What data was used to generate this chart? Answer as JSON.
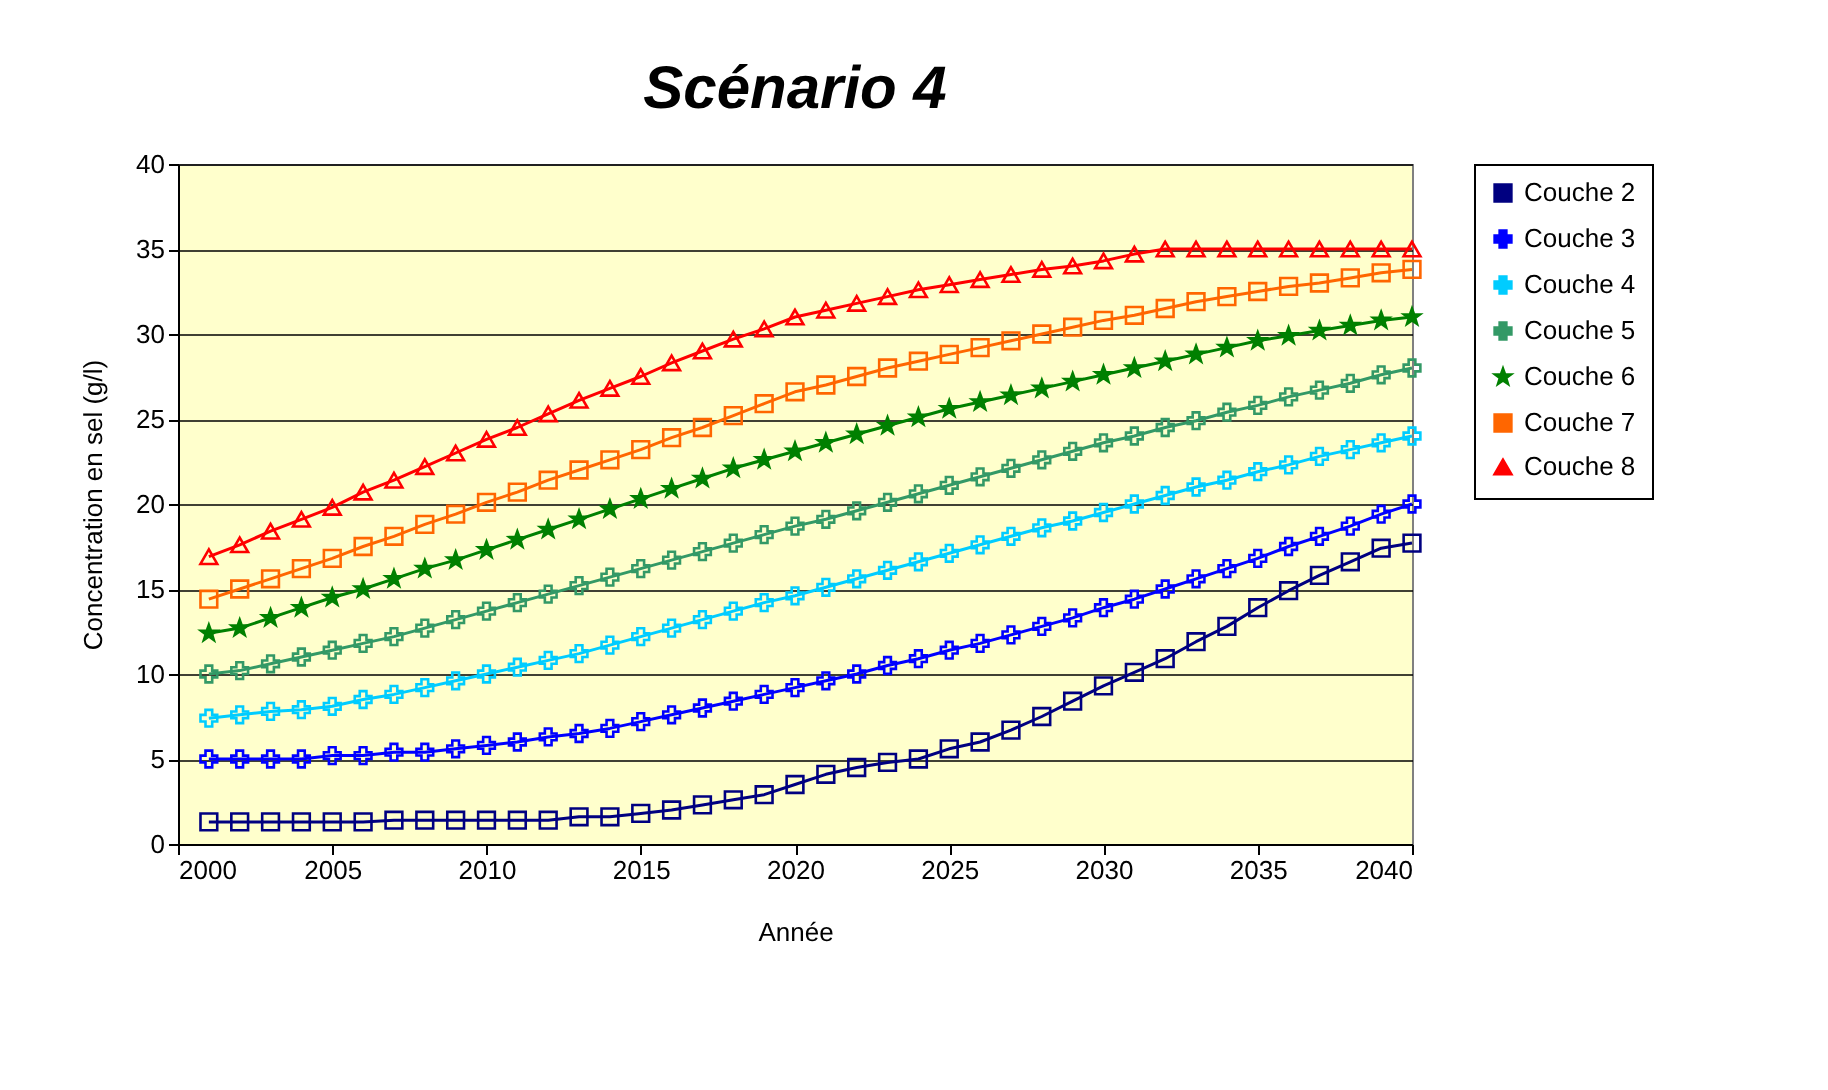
{
  "chart_data": {
    "type": "line",
    "title": "Scénario 4",
    "xlabel": "Année",
    "ylabel": "Concentration en sel (g/l)",
    "x": [
      2001,
      2002,
      2003,
      2004,
      2005,
      2006,
      2007,
      2008,
      2009,
      2010,
      2011,
      2012,
      2013,
      2014,
      2015,
      2016,
      2017,
      2018,
      2019,
      2020,
      2021,
      2022,
      2023,
      2024,
      2025,
      2026,
      2027,
      2028,
      2029,
      2030,
      2031,
      2032,
      2033,
      2034,
      2035,
      2036,
      2037,
      2038,
      2039,
      2040
    ],
    "xlim": [
      2000,
      2040
    ],
    "xticks": [
      2000,
      2005,
      2010,
      2015,
      2020,
      2025,
      2030,
      2035,
      2040
    ],
    "ylim": [
      0,
      40
    ],
    "yticks": [
      0,
      5,
      10,
      15,
      20,
      25,
      30,
      35,
      40
    ],
    "grid": "y",
    "legend": "right",
    "series": [
      {
        "name": "Couche 2",
        "color": "#000080",
        "marker": "square",
        "values": [
          1.3,
          1.3,
          1.3,
          1.3,
          1.3,
          1.3,
          1.4,
          1.4,
          1.4,
          1.4,
          1.4,
          1.4,
          1.6,
          1.6,
          1.8,
          2.0,
          2.3,
          2.6,
          2.9,
          3.5,
          4.1,
          4.5,
          4.8,
          5.0,
          5.6,
          6.0,
          6.7,
          7.5,
          8.4,
          9.3,
          10.1,
          10.9,
          11.9,
          12.8,
          13.9,
          14.9,
          15.8,
          16.6,
          17.4,
          17.7
        ]
      },
      {
        "name": "Couche 3",
        "color": "#0000ff",
        "marker": "cross",
        "values": [
          5.0,
          5.0,
          5.0,
          5.0,
          5.2,
          5.2,
          5.4,
          5.4,
          5.6,
          5.8,
          6.0,
          6.3,
          6.5,
          6.8,
          7.2,
          7.6,
          8.0,
          8.4,
          8.8,
          9.2,
          9.6,
          10.0,
          10.5,
          10.9,
          11.4,
          11.8,
          12.3,
          12.8,
          13.3,
          13.9,
          14.4,
          15.0,
          15.6,
          16.2,
          16.8,
          17.5,
          18.1,
          18.7,
          19.4,
          20.0
        ]
      },
      {
        "name": "Couche 4",
        "color": "#00ccff",
        "marker": "cross",
        "values": [
          7.4,
          7.6,
          7.8,
          7.9,
          8.1,
          8.5,
          8.8,
          9.2,
          9.6,
          10.0,
          10.4,
          10.8,
          11.2,
          11.7,
          12.2,
          12.7,
          13.2,
          13.7,
          14.2,
          14.6,
          15.1,
          15.6,
          16.1,
          16.6,
          17.1,
          17.6,
          18.1,
          18.6,
          19.0,
          19.5,
          20.0,
          20.5,
          21.0,
          21.4,
          21.9,
          22.3,
          22.8,
          23.2,
          23.6,
          24.0
        ]
      },
      {
        "name": "Couche 5",
        "color": "#339966",
        "marker": "cross",
        "values": [
          10.0,
          10.2,
          10.6,
          11.0,
          11.4,
          11.8,
          12.2,
          12.7,
          13.2,
          13.7,
          14.2,
          14.7,
          15.2,
          15.7,
          16.2,
          16.7,
          17.2,
          17.7,
          18.2,
          18.7,
          19.1,
          19.6,
          20.1,
          20.6,
          21.1,
          21.6,
          22.1,
          22.6,
          23.1,
          23.6,
          24.0,
          24.5,
          24.9,
          25.4,
          25.8,
          26.3,
          26.7,
          27.1,
          27.6,
          28.0
        ]
      },
      {
        "name": "Couche 6",
        "color": "#008000",
        "marker": "star",
        "values": [
          12.4,
          12.7,
          13.3,
          13.9,
          14.5,
          15.0,
          15.6,
          16.2,
          16.7,
          17.3,
          17.9,
          18.5,
          19.1,
          19.7,
          20.3,
          20.9,
          21.5,
          22.1,
          22.6,
          23.1,
          23.6,
          24.1,
          24.6,
          25.1,
          25.6,
          26.0,
          26.4,
          26.8,
          27.2,
          27.6,
          28.0,
          28.4,
          28.8,
          29.2,
          29.6,
          29.9,
          30.2,
          30.5,
          30.8,
          31.0
        ]
      },
      {
        "name": "Couche 7",
        "color": "#ff6600",
        "marker": "square",
        "values": [
          14.4,
          15.0,
          15.6,
          16.2,
          16.8,
          17.5,
          18.1,
          18.8,
          19.4,
          20.1,
          20.7,
          21.4,
          22.0,
          22.6,
          23.2,
          23.9,
          24.5,
          25.2,
          25.9,
          26.6,
          27.0,
          27.5,
          28.0,
          28.4,
          28.8,
          29.2,
          29.6,
          30.0,
          30.4,
          30.8,
          31.1,
          31.5,
          31.9,
          32.2,
          32.5,
          32.8,
          33.0,
          33.3,
          33.6,
          33.8
        ]
      },
      {
        "name": "Couche 8",
        "color": "#ff0000",
        "marker": "triangle",
        "values": [
          16.9,
          17.6,
          18.4,
          19.1,
          19.8,
          20.7,
          21.4,
          22.2,
          23.0,
          23.8,
          24.5,
          25.3,
          26.1,
          26.8,
          27.5,
          28.3,
          29.0,
          29.7,
          30.3,
          31.0,
          31.4,
          31.8,
          32.2,
          32.6,
          32.9,
          33.2,
          33.5,
          33.8,
          34.0,
          34.3,
          34.7,
          35,
          35,
          35,
          35,
          35,
          35,
          35,
          35,
          35
        ]
      }
    ]
  }
}
